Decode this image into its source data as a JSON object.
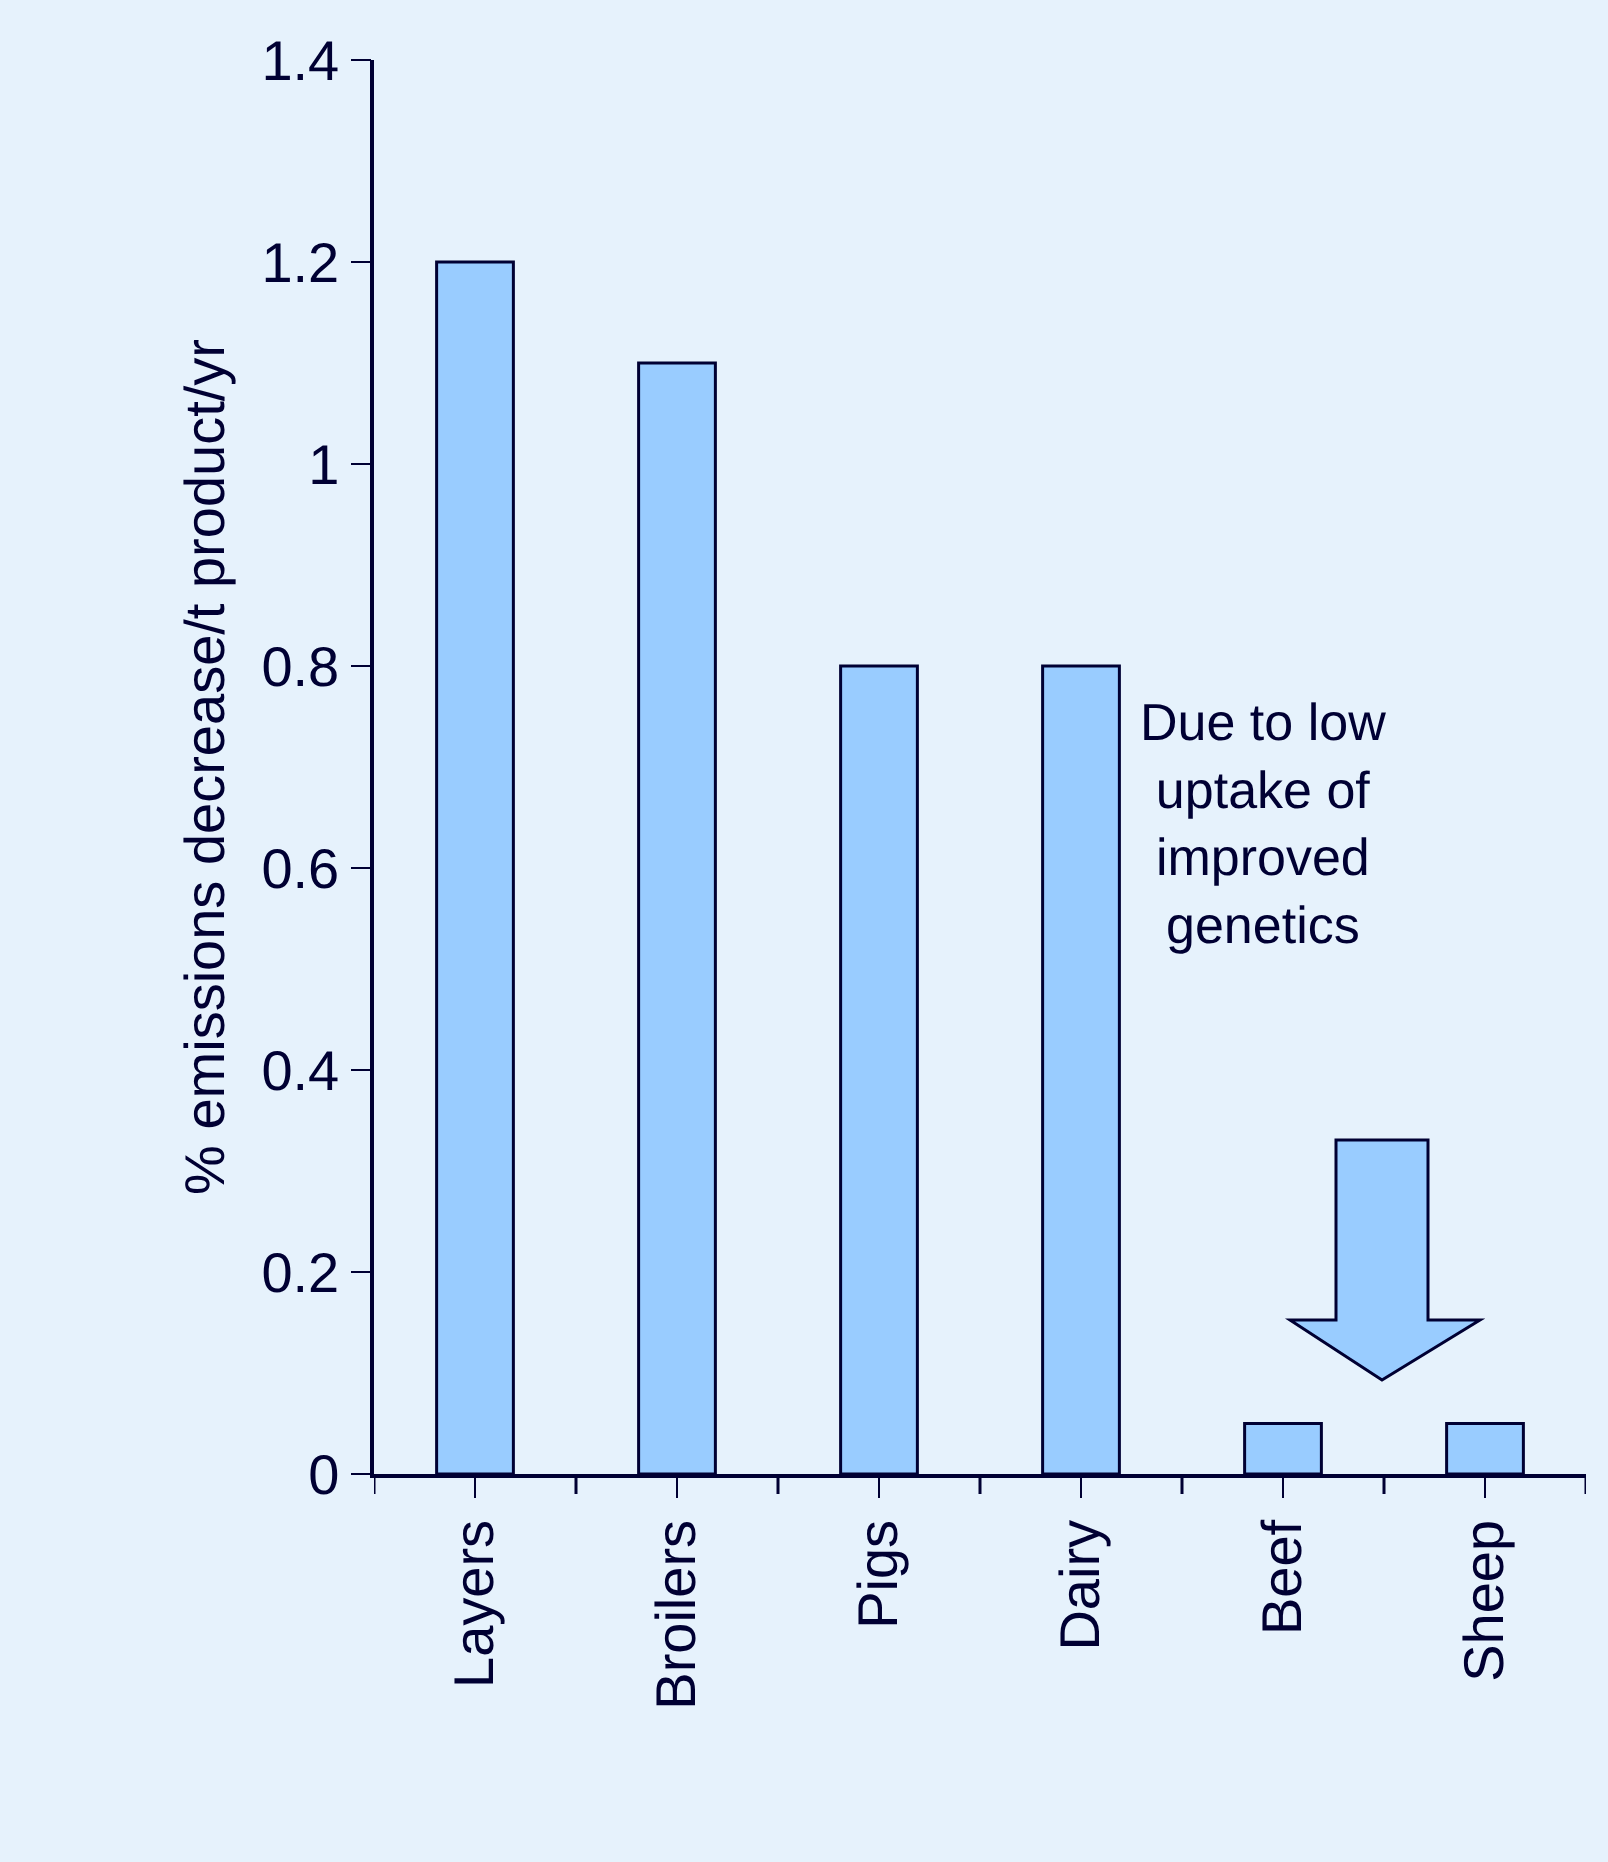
{
  "chart_data": {
    "type": "bar",
    "ylabel": "% emissions decrease/t product/yr",
    "categories": [
      "Layers",
      "Broilers",
      "Pigs",
      "Dairy",
      "Beef",
      "Sheep"
    ],
    "values": [
      1.2,
      1.1,
      0.8,
      0.8,
      0.05,
      0.05
    ],
    "color": "#99ccff",
    "ylim": [
      0,
      1.4
    ],
    "yticks": [
      0,
      0.2,
      0.4,
      0.6,
      0.8,
      1,
      1.2,
      1.4
    ],
    "grid": false,
    "annotations": [
      "Due to low uptake of improved genetics"
    ]
  }
}
